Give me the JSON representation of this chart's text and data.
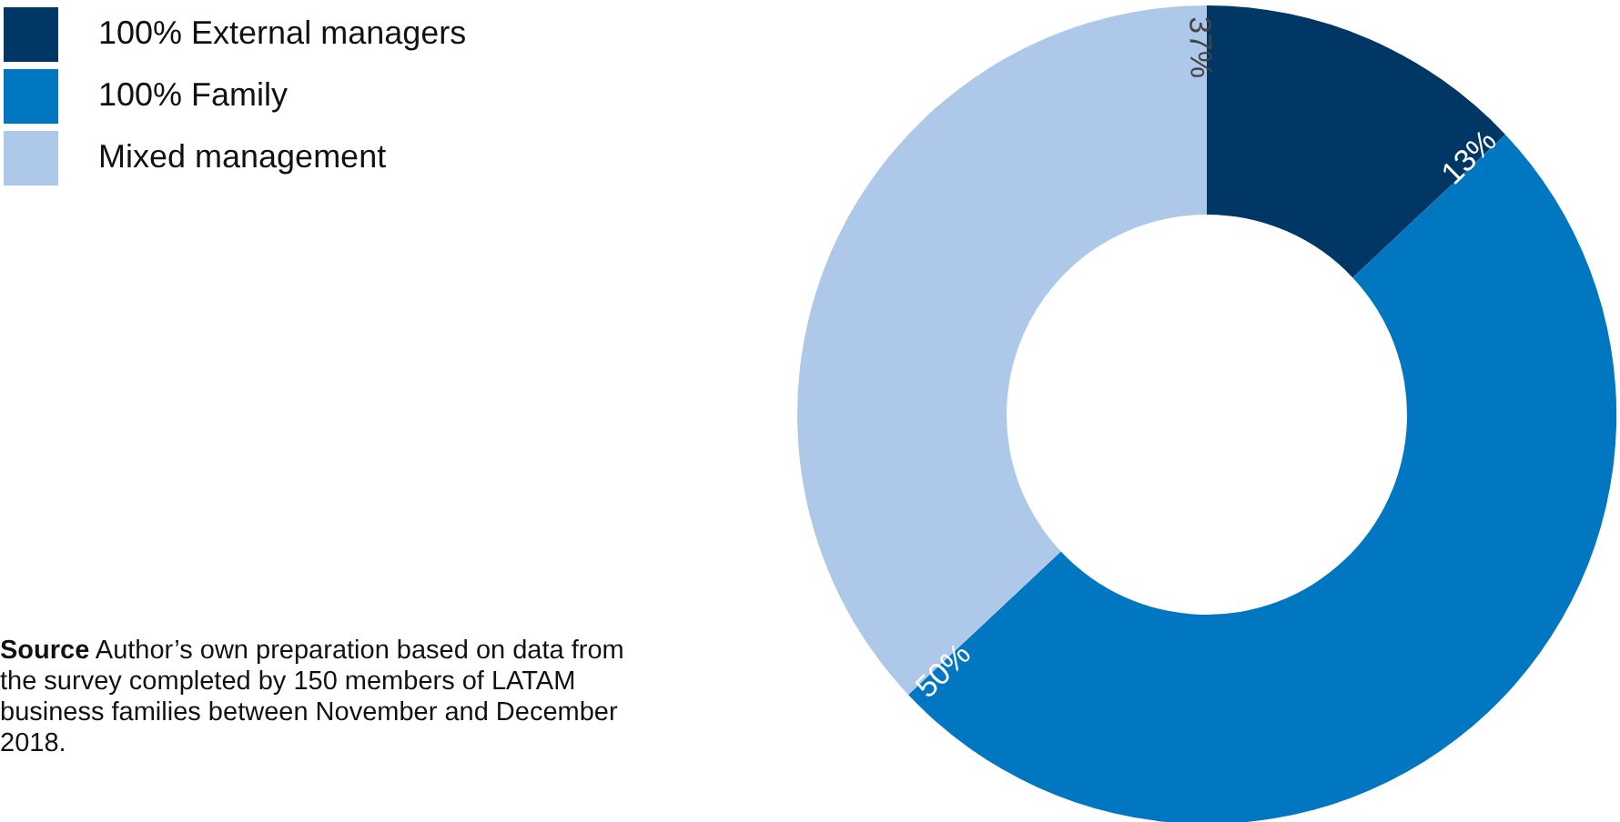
{
  "chart_data": {
    "type": "donut",
    "categories": [
      "100% External managers",
      "100% Family",
      "Mixed management"
    ],
    "values": [
      13,
      50,
      37
    ],
    "colors": [
      "#003764",
      "#0077c0",
      "#adc8e8"
    ],
    "value_labels": [
      "13%",
      "50%",
      "37%"
    ],
    "legend": "top left",
    "annotations": [
      "Source Author’s own preparation based on data from the survey completed by 150 members of LATAM business families between November and December 2018."
    ]
  }
}
